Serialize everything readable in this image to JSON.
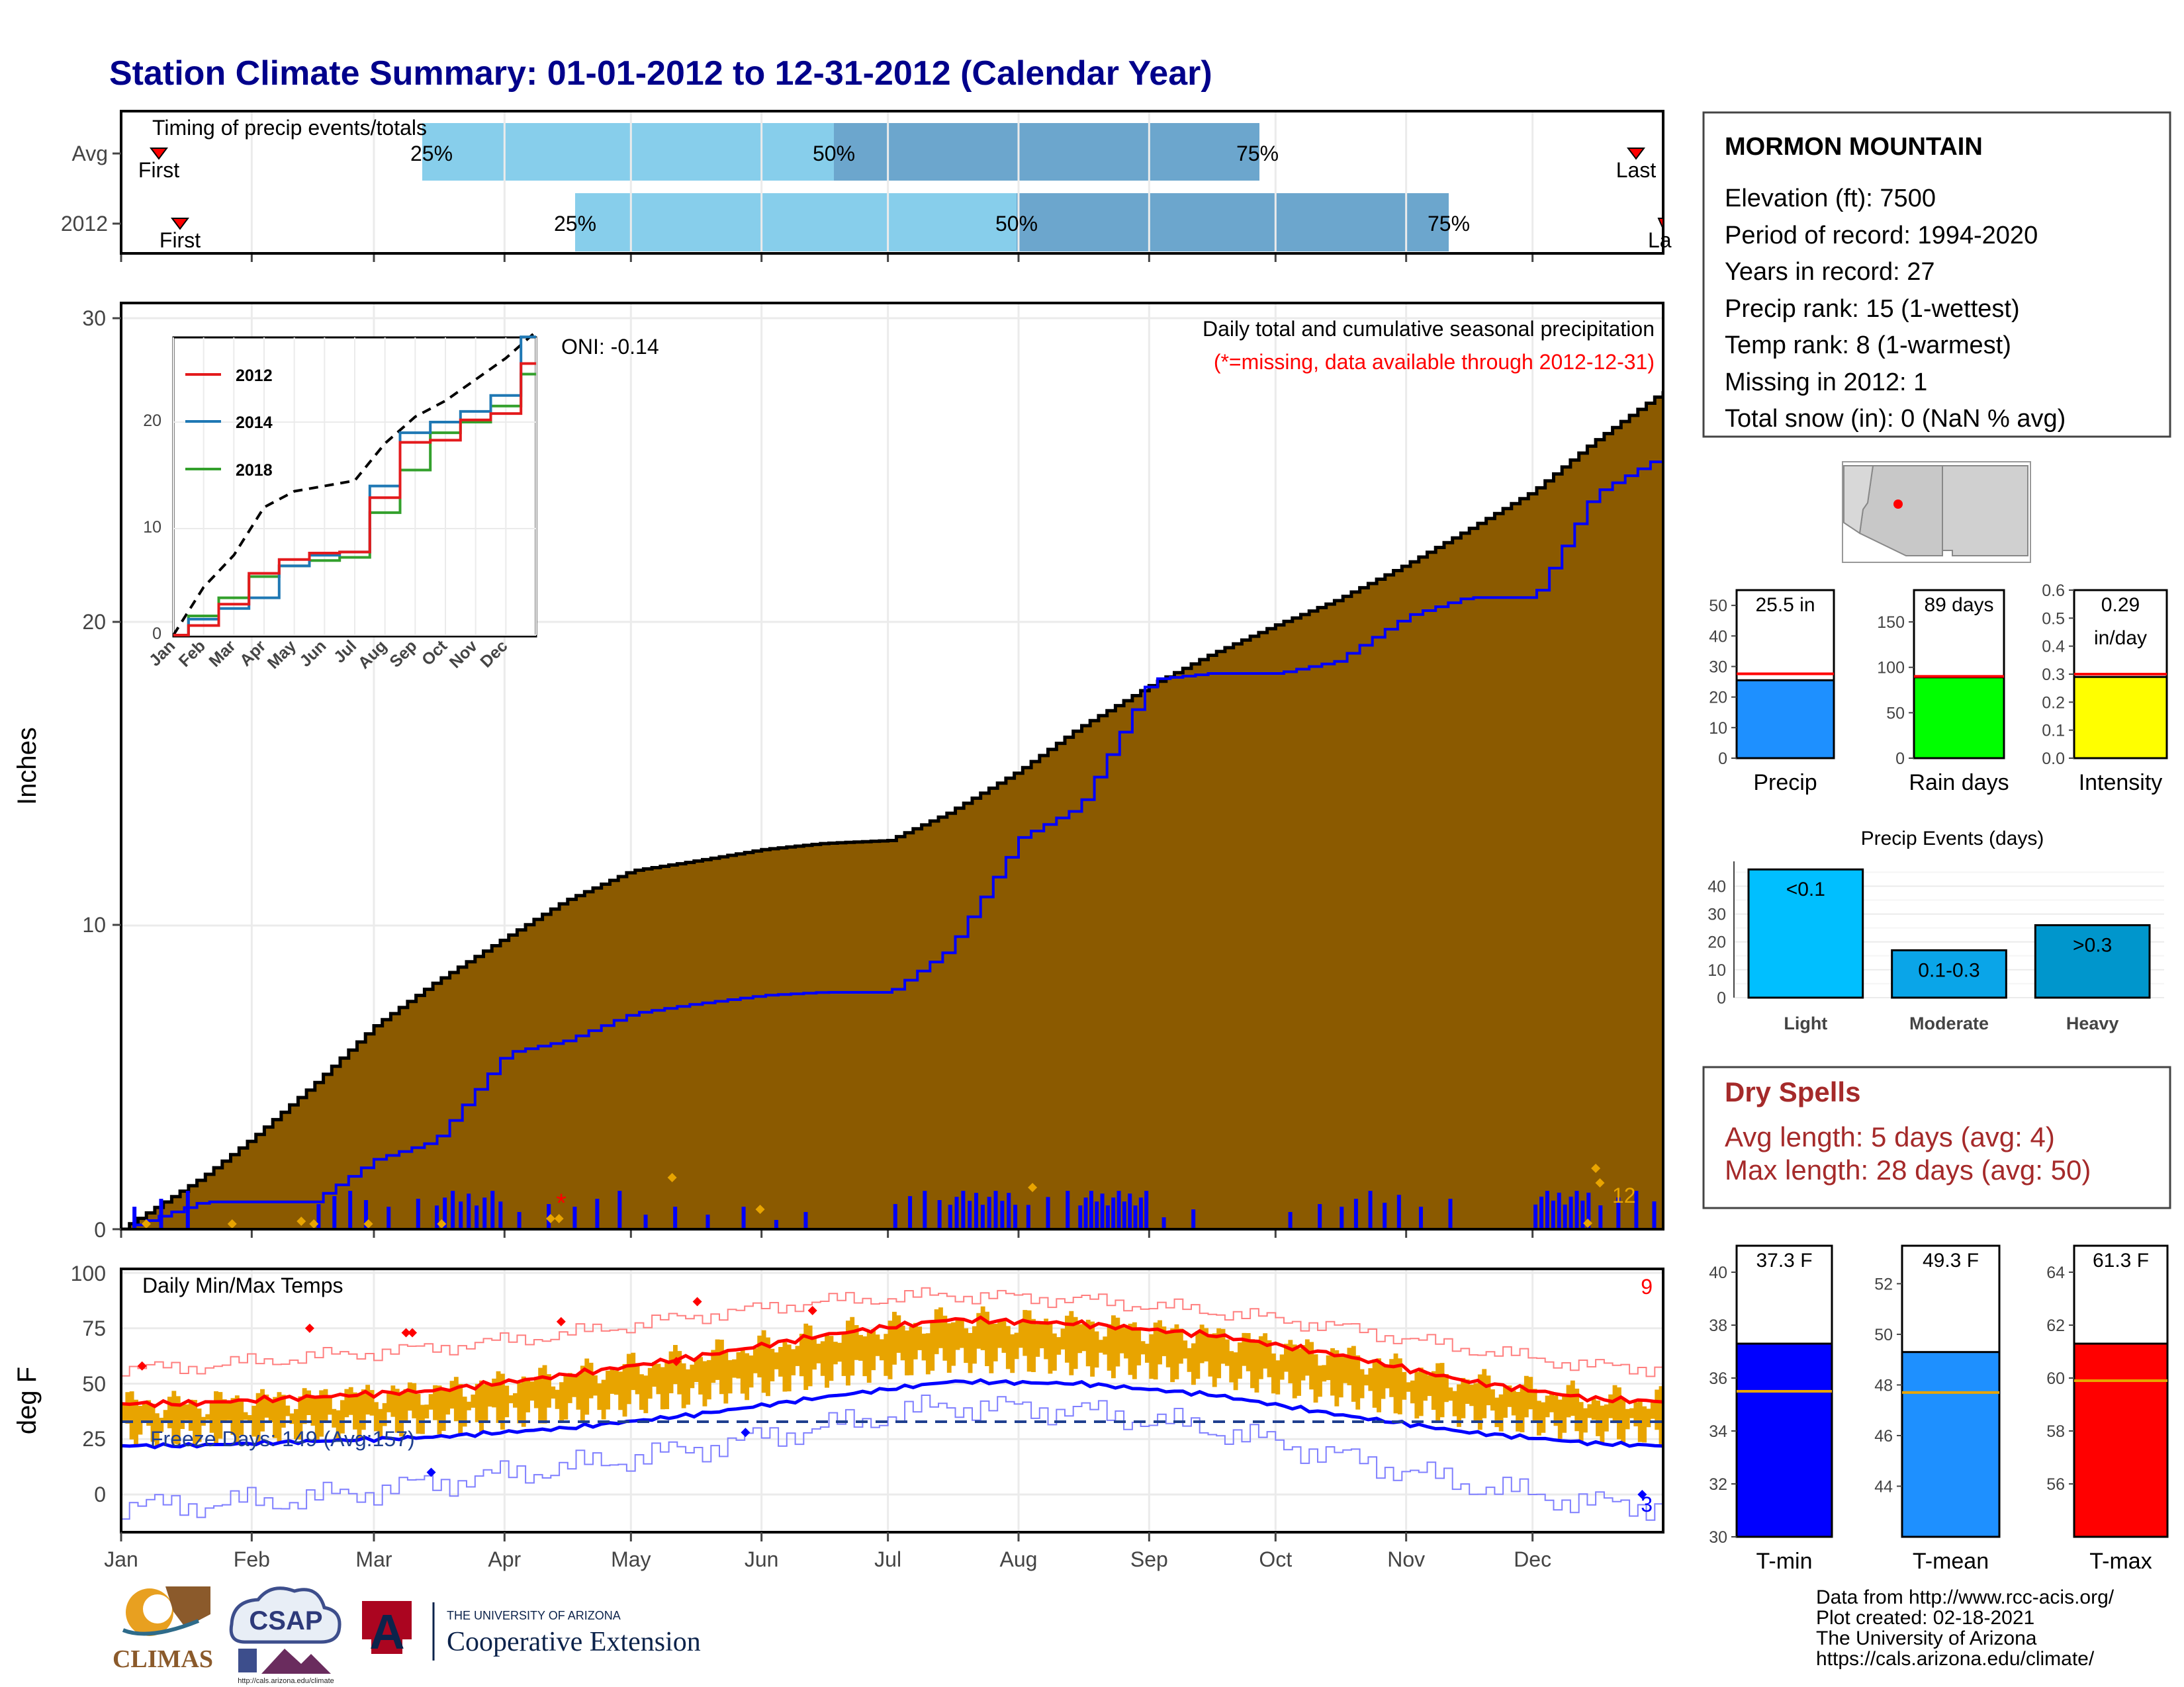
{
  "title": "Station Climate Summary: 01-01-2012 to 12-31-2012 (Calendar Year)",
  "colors": {
    "title": "#00008B",
    "brown": "#8B5A00",
    "grey": "#E0E0E0",
    "blue": "#0000FF",
    "lightblue": "#87CEEB",
    "midblue": "#6CA6CD",
    "orange": "#E8A400",
    "red": "#FF0000",
    "dryspell": "#A52A2A"
  },
  "timing": {
    "label": "Timing of precip events/totals",
    "rows": [
      "Avg",
      "2012"
    ],
    "first": "First",
    "last": "Last",
    "last_clipped": "La",
    "pct": [
      "25%",
      "50%",
      "75%"
    ]
  },
  "station": {
    "name": "MORMON MOUNTAIN",
    "lines": [
      "Elevation (ft): 7500",
      "Period of record: 1994-2020",
      "Years in record: 27",
      "Precip rank: 15 (1-wettest)",
      "Temp rank: 8 (1-warmest)",
      "Missing in 2012: 1",
      "Total snow (in): 0 (NaN % avg)"
    ]
  },
  "precip_panel": {
    "ylabel": "Inches",
    "header": "Daily total and cumulative seasonal precipitation",
    "subheader": "(*=missing, data available through 2012-12-31)",
    "oni": "ONI: -0.14",
    "yticks": [
      "0",
      "10",
      "20",
      "30"
    ],
    "count_label": "12"
  },
  "inset": {
    "legend": [
      "2012",
      "2014",
      "2018"
    ],
    "yticks": [
      "0",
      "10",
      "20"
    ],
    "months": [
      "Jan",
      "Feb",
      "Mar",
      "Apr",
      "May",
      "Jun",
      "Jul",
      "Aug",
      "Sep",
      "Oct",
      "Nov",
      "Dec"
    ]
  },
  "temp_panel": {
    "ylabel": "deg F",
    "header": "Daily Min/Max Temps",
    "freeze": "Freeze Days: 149 (Avg:157)",
    "yticks": [
      "0",
      "25",
      "50",
      "75",
      "100"
    ],
    "max_count": "9",
    "min_count": "3"
  },
  "months": [
    "Jan",
    "Feb",
    "Mar",
    "Apr",
    "May",
    "Jun",
    "Jul",
    "Aug",
    "Sep",
    "Oct",
    "Nov",
    "Dec"
  ],
  "bars_precip": {
    "precip": {
      "label": "Precip",
      "value_label": "25.5 in",
      "yticks": [
        "0",
        "10",
        "20",
        "30",
        "40",
        "50"
      ]
    },
    "raindays": {
      "label": "Rain days",
      "value_label": "89 days",
      "yticks": [
        "0",
        "50",
        "100",
        "150"
      ]
    },
    "intensity": {
      "label": "Intensity",
      "value_label": "0.29",
      "value_label2": "in/day",
      "yticks": [
        "0.0",
        "0.1",
        "0.2",
        "0.3",
        "0.4",
        "0.5",
        "0.6"
      ]
    }
  },
  "events": {
    "title": "Precip Events (days)",
    "categories": [
      "Light",
      "Moderate",
      "Heavy"
    ],
    "labels": [
      "<0.1",
      "0.1-0.3",
      ">0.3"
    ],
    "yticks": [
      "0",
      "10",
      "20",
      "30",
      "40"
    ]
  },
  "dry": {
    "title": "Dry Spells",
    "avg": "Avg length: 5 days (avg: 4)",
    "max": "Max length: 28 days (avg: 50)"
  },
  "temp_bars": {
    "tmin": {
      "label": "T-min",
      "value_label": "37.3 F",
      "yticks": [
        "30",
        "32",
        "34",
        "36",
        "38",
        "40"
      ]
    },
    "tmean": {
      "label": "T-mean",
      "value_label": "49.3 F",
      "yticks": [
        "44",
        "46",
        "48",
        "50",
        "52"
      ]
    },
    "tmax": {
      "label": "T-max",
      "value_label": "61.3 F",
      "yticks": [
        "56",
        "58",
        "60",
        "62",
        "64"
      ]
    }
  },
  "logos": {
    "climas": "CLIMAS",
    "csap": "CSAP",
    "csap_url": "http://cals.arizona.edu/climate",
    "ua_small": "THE UNIVERSITY OF ARIZONA",
    "ua_big": "Cooperative Extension",
    "ua_letter": "A"
  },
  "footer": [
    "Data from http://www.rcc-acis.org/",
    "Plot created: 02-18-2021",
    "The University of Arizona",
    "https://cals.arizona.edu/climate/"
  ],
  "chart_data": [
    {
      "type": "bar",
      "title": "Timing of precip events/totals",
      "categories": [
        "Avg",
        "2012"
      ],
      "x_unit": "month of year",
      "series": [
        {
          "name": "Avg",
          "first": 0.3,
          "p25": 2.65,
          "p50": 5.85,
          "p75": 9.15,
          "last": 11.7
        },
        {
          "name": "2012",
          "first": 0.45,
          "p25": 3.85,
          "p50": 7.25,
          "p75": 10.6,
          "last": 12.0
        }
      ]
    },
    {
      "type": "area",
      "title": "Daily total and cumulative seasonal precipitation",
      "ylabel": "Inches",
      "ylim": [
        0,
        30
      ],
      "x": [
        "01-01",
        "01-20",
        "02-01",
        "02-15",
        "03-01",
        "03-15",
        "04-01",
        "04-15",
        "05-01",
        "05-15",
        "06-01",
        "06-15",
        "07-01",
        "07-15",
        "08-01",
        "08-15",
        "09-01",
        "09-15",
        "10-01",
        "10-15",
        "11-01",
        "11-15",
        "12-01",
        "12-15",
        "12-31"
      ],
      "series": [
        {
          "name": "Avg cumulative",
          "values": [
            0,
            1.7,
            3.0,
            4.7,
            6.7,
            8.1,
            9.6,
            10.8,
            11.8,
            12.1,
            12.5,
            12.7,
            12.8,
            13.7,
            15.1,
            16.5,
            17.9,
            18.9,
            19.9,
            20.7,
            21.9,
            23.0,
            24.3,
            25.9,
            27.6
          ]
        },
        {
          "name": "2012 cumulative",
          "values": [
            0,
            0.9,
            0.9,
            0.9,
            2.3,
            2.9,
            5.8,
            6.2,
            7.1,
            7.4,
            7.7,
            7.8,
            7.8,
            9.2,
            12.9,
            13.9,
            18.1,
            18.3,
            18.3,
            18.7,
            20.2,
            20.8,
            20.8,
            24.2,
            25.5
          ]
        }
      ]
    },
    {
      "type": "line",
      "title": "inset",
      "ylim": [
        0,
        30
      ],
      "x": [
        "Jan",
        "Feb",
        "Mar",
        "Apr",
        "May",
        "Jun",
        "Jul",
        "Aug",
        "Sep",
        "Oct",
        "Nov",
        "Dec",
        "end"
      ],
      "series": [
        {
          "name": "2012",
          "values": [
            0,
            0.9,
            2.9,
            5.8,
            7.1,
            7.7,
            7.8,
            12.9,
            18.1,
            18.3,
            20.2,
            20.8,
            25.5
          ]
        },
        {
          "name": "2014",
          "values": [
            0,
            1.5,
            2.5,
            3.5,
            6.5,
            7.5,
            7.8,
            14.0,
            19.0,
            20.0,
            21.0,
            22.5,
            28.0
          ]
        },
        {
          "name": "2018",
          "values": [
            0,
            1.8,
            3.5,
            5.5,
            6.5,
            7.0,
            7.3,
            11.5,
            15.5,
            19.0,
            20.0,
            21.5,
            24.5
          ]
        },
        {
          "name": "max",
          "values": [
            0,
            4.5,
            7.5,
            12.0,
            13.5,
            14.0,
            14.5,
            18.0,
            20.5,
            22.0,
            24.0,
            26.0,
            28.5
          ]
        }
      ]
    },
    {
      "type": "line",
      "title": "Daily Min/Max Temps",
      "ylabel": "deg F",
      "ylim": [
        -10,
        100
      ],
      "x": [
        "Jan",
        "Feb",
        "Mar",
        "Apr",
        "May",
        "Jun",
        "Jul",
        "Aug",
        "Sep",
        "Oct",
        "Nov",
        "Dec",
        "end"
      ],
      "series": [
        {
          "name": "avg max",
          "values": [
            41,
            44,
            47,
            54,
            62,
            72,
            79,
            77,
            72,
            63,
            51,
            43,
            42
          ]
        },
        {
          "name": "avg min",
          "values": [
            22,
            24,
            26,
            30,
            36,
            44,
            51,
            50,
            45,
            36,
            28,
            23,
            22
          ]
        },
        {
          "name": "record max",
          "values": [
            57,
            62,
            66,
            72,
            80,
            87,
            90,
            88,
            83,
            76,
            66,
            58,
            57
          ]
        },
        {
          "name": "record min",
          "values": [
            -5,
            -2,
            5,
            12,
            20,
            30,
            40,
            38,
            30,
            18,
            5,
            -4,
            -5
          ]
        },
        {
          "name": "freeze",
          "values": [
            32,
            32,
            32,
            32,
            32,
            32,
            32,
            32,
            32,
            32,
            32,
            32,
            32
          ]
        }
      ]
    },
    {
      "type": "bar",
      "categories": [
        "Precip",
        "Rain days",
        "Intensity"
      ],
      "series": [
        {
          "name": "2012",
          "values": [
            25.5,
            89,
            0.29
          ]
        },
        {
          "name": "avg",
          "values": [
            27.6,
            90,
            0.3
          ]
        }
      ]
    },
    {
      "type": "bar",
      "title": "Precip Events (days)",
      "categories": [
        "Light",
        "Moderate",
        "Heavy"
      ],
      "ylim": [
        0,
        47
      ],
      "values": [
        46,
        17,
        26
      ]
    },
    {
      "type": "bar",
      "categories": [
        "T-min",
        "T-mean",
        "T-max"
      ],
      "series": [
        {
          "name": "2012",
          "values": [
            37.3,
            49.3,
            61.3
          ]
        },
        {
          "name": "avg",
          "values": [
            35.5,
            47.7,
            59.9
          ]
        }
      ]
    }
  ]
}
